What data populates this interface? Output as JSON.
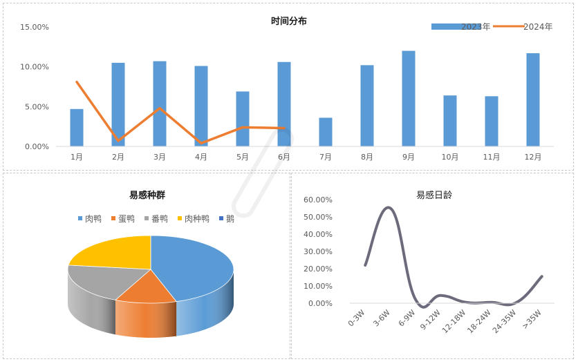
{
  "chart_data": [
    {
      "type": "bar",
      "title": "时间分布",
      "categories": [
        "1月",
        "2月",
        "3月",
        "4月",
        "5月",
        "6月",
        "7月",
        "8月",
        "9月",
        "10月",
        "11月",
        "12月"
      ],
      "series": [
        {
          "name": "2023年",
          "type": "bar",
          "color": "#5b9bd5",
          "values": [
            4.7,
            10.5,
            10.7,
            10.1,
            6.9,
            10.6,
            3.6,
            10.2,
            12.0,
            6.4,
            6.3,
            11.7
          ]
        },
        {
          "name": "2024年",
          "type": "line",
          "color": "#ed7d31",
          "values": [
            8.1,
            0.7,
            4.8,
            0.4,
            2.4,
            2.3,
            null,
            null,
            null,
            null,
            null,
            null
          ]
        }
      ],
      "ylim": [
        0,
        15
      ],
      "yticks": [
        "0.00%",
        "5.00%",
        "10.00%",
        "15.00%"
      ],
      "ytick_values": [
        0,
        5,
        10,
        15
      ],
      "legend_position": "top-right",
      "grid": false
    },
    {
      "type": "pie",
      "title": "易感种群",
      "labels": [
        "肉鸭",
        "蛋鸭",
        "番鸭",
        "肉种鸭",
        "鹅"
      ],
      "values": [
        45,
        12,
        20,
        23,
        0
      ],
      "colors": [
        "#5b9bd5",
        "#ed7d31",
        "#a5a5a5",
        "#ffc000",
        "#4472c4"
      ],
      "legend_position": "top"
    },
    {
      "type": "line",
      "title": "易感日龄",
      "categories": [
        "0-3W",
        "3-6W",
        "6-9W",
        "9-12W",
        "12-18W",
        "18-24W",
        "24-35W",
        ">35W"
      ],
      "values": [
        22.0,
        55.0,
        2.0,
        4.5,
        0.5,
        0.5,
        0.5,
        15.5
      ],
      "color": "#6b6b7b",
      "ylim": [
        0,
        60
      ],
      "yticks": [
        "0.00%",
        "10.00%",
        "20.00%",
        "30.00%",
        "40.00%",
        "50.00%",
        "60.00%"
      ],
      "ytick_values": [
        0,
        10,
        20,
        30,
        40,
        50,
        60
      ],
      "grid": false
    }
  ]
}
